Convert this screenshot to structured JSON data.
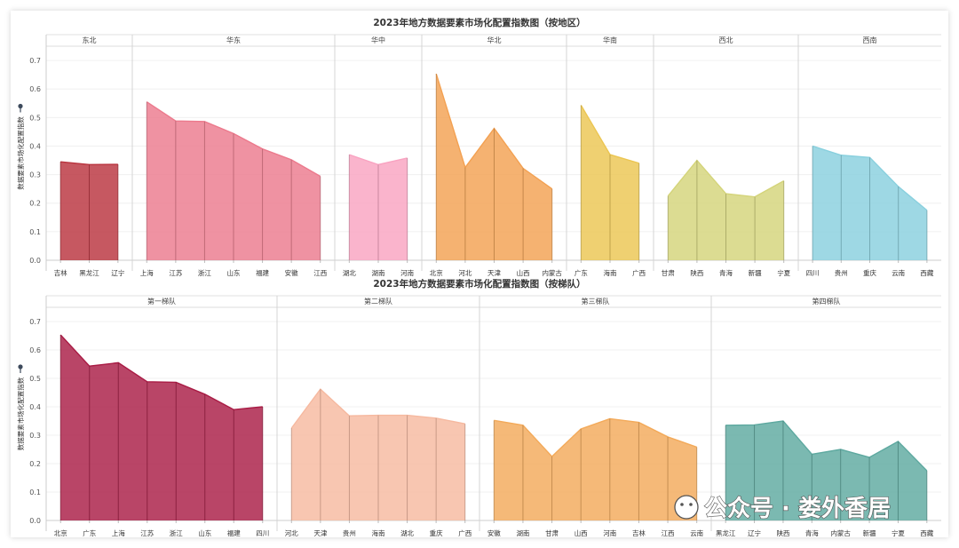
{
  "chart_data": [
    {
      "type": "area",
      "title": "2023年地方数据要素市场化配置指数图（按地区）",
      "ylabel": "数据要素市场化配置指数",
      "ylim": [
        0,
        0.75
      ],
      "y_ticks": [
        "0.0",
        "0.1",
        "0.2",
        "0.3",
        "0.4",
        "0.5",
        "0.6",
        "0.7"
      ],
      "grid": true,
      "panels": [
        {
          "name": "东北",
          "color": "#b9333e",
          "categories": [
            "吉林",
            "黑龙江",
            "辽宁"
          ],
          "values": [
            0.345,
            0.335,
            0.336
          ]
        },
        {
          "name": "华东",
          "color": "#ec7a8d",
          "categories": [
            "上海",
            "江苏",
            "浙江",
            "山东",
            "福建",
            "安徽",
            "江西"
          ],
          "values": [
            0.555,
            0.488,
            0.486,
            0.444,
            0.39,
            0.352,
            0.294
          ]
        },
        {
          "name": "华中",
          "color": "#f9a3c1",
          "categories": [
            "湖北",
            "湖南",
            "河南"
          ],
          "values": [
            0.37,
            0.335,
            0.358
          ]
        },
        {
          "name": "华北",
          "color": "#f3a152",
          "categories": [
            "北京",
            "河北",
            "天津",
            "山西",
            "内蒙古"
          ],
          "values": [
            0.653,
            0.325,
            0.462,
            0.322,
            0.25
          ]
        },
        {
          "name": "华南",
          "color": "#ecc652",
          "categories": [
            "广东",
            "海南",
            "广西"
          ],
          "values": [
            0.543,
            0.37,
            0.34
          ]
        },
        {
          "name": "西北",
          "color": "#d4d47a",
          "categories": [
            "甘肃",
            "陕西",
            "青海",
            "新疆",
            "宁夏"
          ],
          "values": [
            0.225,
            0.35,
            0.233,
            0.222,
            0.278
          ]
        },
        {
          "name": "西南",
          "color": "#89d0de",
          "categories": [
            "四川",
            "贵州",
            "重庆",
            "云南",
            "西藏"
          ],
          "values": [
            0.4,
            0.368,
            0.36,
            0.258,
            0.175
          ]
        }
      ]
    },
    {
      "type": "area",
      "title": "2023年地方数据要素市场化配置指数图（按梯队）",
      "ylabel": "数据要素市场化配置指数",
      "ylim": [
        0,
        0.75
      ],
      "y_ticks": [
        "0.0",
        "0.1",
        "0.2",
        "0.3",
        "0.4",
        "0.5",
        "0.6",
        "0.7"
      ],
      "grid": true,
      "panels": [
        {
          "name": "第一梯队",
          "color": "#a91c45",
          "categories": [
            "北京",
            "广东",
            "上海",
            "江苏",
            "浙江",
            "山东",
            "福建",
            "四川"
          ],
          "values": [
            0.653,
            0.543,
            0.555,
            0.488,
            0.486,
            0.444,
            0.39,
            0.4
          ]
        },
        {
          "name": "第二梯队",
          "color": "#f6b9a0",
          "categories": [
            "河北",
            "天津",
            "贵州",
            "海南",
            "湖北",
            "重庆",
            "广西"
          ],
          "values": [
            0.325,
            0.462,
            0.368,
            0.37,
            0.37,
            0.36,
            0.34
          ]
        },
        {
          "name": "第三梯队",
          "color": "#f3aa5a",
          "categories": [
            "安徽",
            "湖南",
            "甘肃",
            "山西",
            "河南",
            "吉林",
            "江西",
            "云南"
          ],
          "values": [
            0.352,
            0.335,
            0.225,
            0.322,
            0.358,
            0.345,
            0.294,
            0.258
          ]
        },
        {
          "name": "第四梯队",
          "color": "#5ea9a0",
          "categories": [
            "黑龙江",
            "辽宁",
            "陕西",
            "青海",
            "内蒙古",
            "新疆",
            "宁夏",
            "西藏"
          ],
          "values": [
            0.335,
            0.336,
            0.35,
            0.233,
            0.25,
            0.222,
            0.278,
            0.175
          ]
        }
      ]
    }
  ],
  "watermark": {
    "text": "公众号 · 娄外香居"
  }
}
